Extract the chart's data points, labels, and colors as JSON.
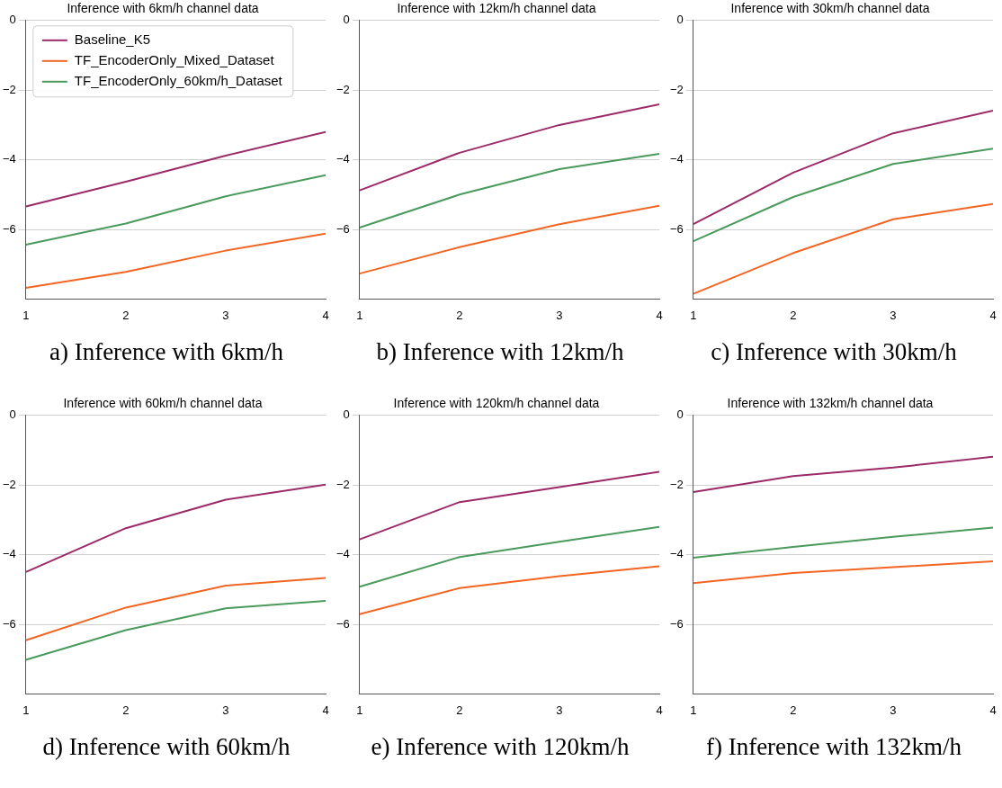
{
  "chart_data": [
    {
      "type": "line",
      "title": "Inference with 6km/h channel data",
      "x": [
        1,
        2,
        3,
        4
      ],
      "xlim": [
        1,
        4
      ],
      "xticks": [
        1,
        2,
        3,
        4
      ],
      "ylim": [
        -8,
        0
      ],
      "yticks": [
        0,
        -2,
        -4,
        -6
      ],
      "grid": "y",
      "legend": "top left",
      "marker": "none",
      "annotations": [
        "a) Inference with 6km/h"
      ],
      "series": [
        {
          "name": "Baseline_K5",
          "color": "#9c2a68",
          "values": [
            -5.34,
            -4.63,
            -3.88,
            -3.2
          ]
        },
        {
          "name": "TF_EncoderOnly_Mixed_Dataset",
          "color": "#f26522",
          "values": [
            -7.68,
            -7.22,
            -6.61,
            -6.12
          ]
        },
        {
          "name": "TF_EncoderOnly_60km/h_Dataset",
          "color": "#4a9a5c",
          "values": [
            -6.44,
            -5.83,
            -5.05,
            -4.44
          ]
        }
      ]
    },
    {
      "type": "line",
      "title": "Inference with 12km/h channel data",
      "x": [
        1,
        2,
        3,
        4
      ],
      "xlim": [
        1,
        4
      ],
      "xticks": [
        1,
        2,
        3,
        4
      ],
      "ylim": [
        -8,
        0
      ],
      "yticks": [
        0,
        -2,
        -4,
        -6
      ],
      "grid": "y",
      "marker": "none",
      "annotations": [
        "b) Inference with 12km/h"
      ],
      "series": [
        {
          "color": "#9c2a68",
          "values": [
            -4.88,
            -3.8,
            -3.0,
            -2.41
          ]
        },
        {
          "color": "#f26522",
          "values": [
            -7.27,
            -6.51,
            -5.85,
            -5.32
          ]
        },
        {
          "color": "#4a9a5c",
          "values": [
            -5.95,
            -5.0,
            -4.27,
            -3.83
          ]
        }
      ]
    },
    {
      "type": "line",
      "title": "Inference with 30km/h channel data",
      "x": [
        1,
        2,
        3,
        4
      ],
      "xlim": [
        1,
        4
      ],
      "xticks": [
        1,
        2,
        3,
        4
      ],
      "ylim": [
        -8,
        0
      ],
      "yticks": [
        0,
        -2,
        -4,
        -6
      ],
      "grid": "y",
      "marker": "none",
      "annotations": [
        "c) Inference with 30km/h"
      ],
      "series": [
        {
          "color": "#9c2a68",
          "values": [
            -5.85,
            -4.37,
            -3.24,
            -2.59
          ]
        },
        {
          "color": "#f26522",
          "values": [
            -7.85,
            -6.68,
            -5.71,
            -5.27
          ]
        },
        {
          "color": "#4a9a5c",
          "values": [
            -6.34,
            -5.07,
            -4.12,
            -3.68
          ]
        }
      ]
    },
    {
      "type": "line",
      "title": "Inference with 60km/h channel data",
      "x": [
        1,
        2,
        3,
        4
      ],
      "xlim": [
        1,
        4
      ],
      "xticks": [
        1,
        2,
        3,
        4
      ],
      "ylim": [
        -8,
        0
      ],
      "yticks": [
        0,
        -2,
        -4,
        -6
      ],
      "grid": "y",
      "marker": "none",
      "annotations": [
        "d) Inference with 60km/h"
      ],
      "series": [
        {
          "color": "#9c2a68",
          "values": [
            -4.5,
            -3.24,
            -2.42,
            -1.99
          ]
        },
        {
          "color": "#f26522",
          "values": [
            -6.46,
            -5.52,
            -4.89,
            -4.67
          ]
        },
        {
          "color": "#4a9a5c",
          "values": [
            -7.02,
            -6.17,
            -5.54,
            -5.33
          ]
        }
      ]
    },
    {
      "type": "line",
      "title": "Inference with 120km/h channel data",
      "x": [
        1,
        2,
        3,
        4
      ],
      "xlim": [
        1,
        4
      ],
      "xticks": [
        1,
        2,
        3,
        4
      ],
      "ylim": [
        -8,
        0
      ],
      "yticks": [
        0,
        -2,
        -4,
        -6
      ],
      "grid": "y",
      "marker": "none",
      "annotations": [
        "e) Inference with 120km/h"
      ],
      "series": [
        {
          "color": "#9c2a68",
          "values": [
            -3.56,
            -2.49,
            -2.06,
            -1.62
          ]
        },
        {
          "color": "#f26522",
          "values": [
            -5.71,
            -4.96,
            -4.62,
            -4.33
          ]
        },
        {
          "color": "#4a9a5c",
          "values": [
            -4.92,
            -4.07,
            -3.63,
            -3.2
          ]
        }
      ]
    },
    {
      "type": "line",
      "title": "Inference with 132km/h channel data",
      "x": [
        1,
        2,
        3,
        4
      ],
      "xlim": [
        1,
        4
      ],
      "xticks": [
        1,
        2,
        3,
        4
      ],
      "ylim": [
        -8,
        0
      ],
      "yticks": [
        0,
        -2,
        -4,
        -6
      ],
      "grid": "y",
      "marker": "none",
      "annotations": [
        "f) Inference with 132km/h"
      ],
      "series": [
        {
          "color": "#9c2a68",
          "values": [
            -2.2,
            -1.74,
            -1.5,
            -1.19
          ]
        },
        {
          "color": "#f26522",
          "values": [
            -4.82,
            -4.53,
            -4.36,
            -4.19
          ]
        },
        {
          "color": "#4a9a5c",
          "values": [
            -4.09,
            -3.78,
            -3.49,
            -3.22
          ]
        }
      ]
    }
  ]
}
